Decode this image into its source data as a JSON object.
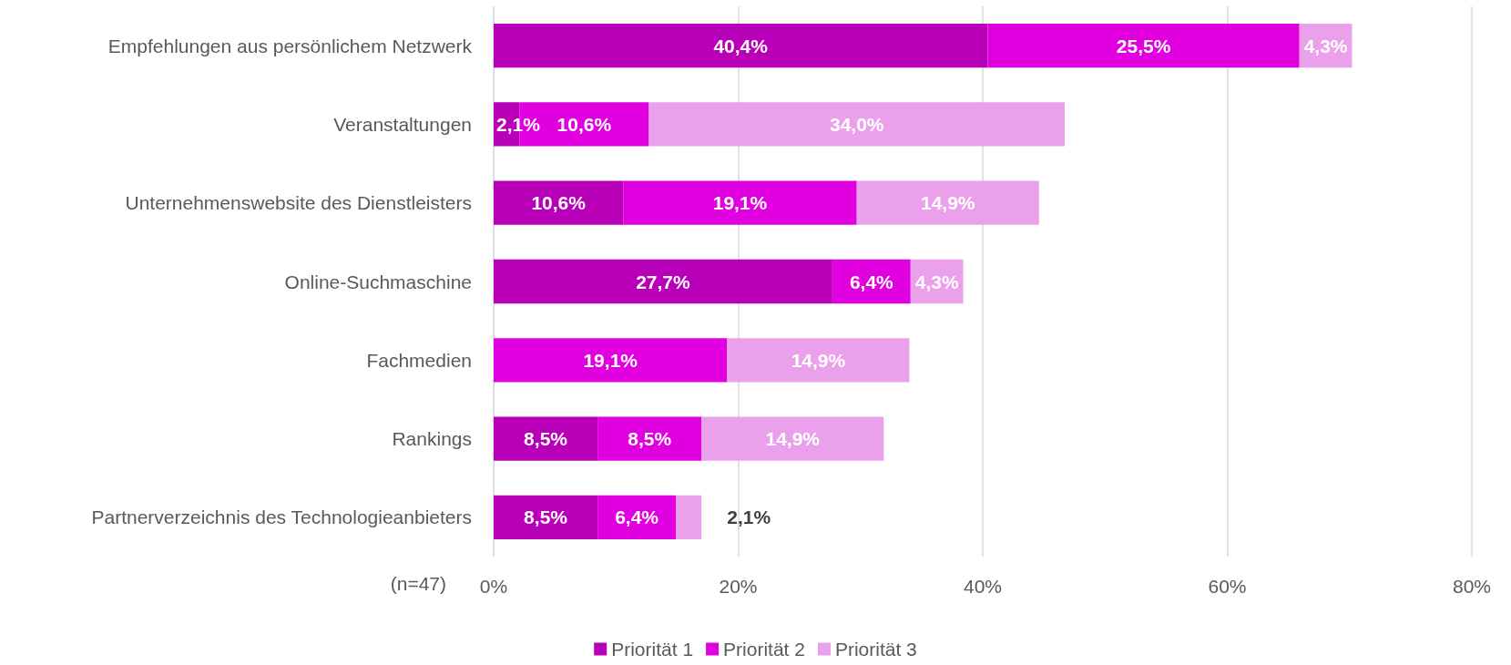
{
  "chart_data": {
    "type": "bar",
    "orientation": "horizontal",
    "stacked": true,
    "categories": [
      "Empfehlungen aus persönlichem Netzwerk",
      "Veranstaltungen",
      "Unternehmenswebsite des Dienstleisters",
      "Online-Suchmaschine",
      "Fachmedien",
      "Rankings",
      "Partnerverzeichnis des Technologieanbieters"
    ],
    "series": [
      {
        "name": "Priorität 1",
        "color": "#b800b8",
        "values": [
          40.4,
          2.1,
          10.6,
          27.7,
          null,
          8.5,
          8.5
        ],
        "value_labels": [
          "40,4%",
          "2,1%",
          "10,6%",
          "27,7%",
          null,
          "8,5%",
          "8,5%"
        ]
      },
      {
        "name": "Priorität 2",
        "color": "#e000e0",
        "values": [
          25.5,
          10.6,
          19.1,
          6.4,
          19.1,
          8.5,
          6.4
        ],
        "value_labels": [
          "25,5%",
          "10,6%",
          "19,1%",
          "6,4%",
          "19,1%",
          "8,5%",
          "6,4%"
        ]
      },
      {
        "name": "Priorität 3",
        "color": "#eaa0ea",
        "values": [
          4.3,
          34.0,
          14.9,
          4.3,
          14.9,
          14.9,
          2.1
        ],
        "value_labels": [
          "4,3%",
          "34,0%",
          "14,9%",
          "4,3%",
          "14,9%",
          "14,9%",
          "2,1%"
        ]
      }
    ],
    "xlim": [
      0,
      80
    ],
    "xticks": [
      {
        "value": 0,
        "label": "0%"
      },
      {
        "value": 20,
        "label": "20%"
      },
      {
        "value": 40,
        "label": "40%"
      },
      {
        "value": 60,
        "label": "60%"
      },
      {
        "value": 80,
        "label": "80%"
      }
    ],
    "grid": "x",
    "legend": "bottom",
    "annotations": [
      "(n=47)"
    ]
  }
}
